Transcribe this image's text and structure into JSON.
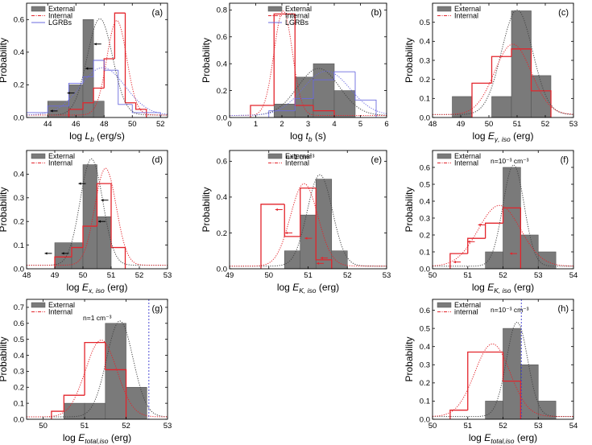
{
  "chart_data": [
    {
      "panel": "(a)",
      "type": "bar",
      "xlabel_main": "log ",
      "xlabel_var": "L",
      "xlabel_sub": "b",
      "xlabel_units": " (erg/s)",
      "ylabel": "Probability",
      "xlim": [
        42.5,
        52.5
      ],
      "ylim": [
        0,
        0.7
      ],
      "xticks": [
        44,
        46,
        48,
        50,
        52
      ],
      "yticks": [
        0.0,
        0.2,
        0.4,
        0.6
      ],
      "legend": [
        "External",
        "Internal",
        "LGRBs"
      ],
      "annotation": "",
      "series": [
        {
          "name": "External",
          "style": "bar",
          "edges": [
            44,
            45.5,
            46.5,
            47.25,
            48,
            48.75
          ],
          "values": [
            0.1,
            0.2,
            0.6,
            0.1,
            0.0
          ]
        },
        {
          "name": "Internal",
          "style": "step",
          "edges": [
            45.5,
            46.5,
            47.25,
            48,
            48.75,
            49.5,
            50.25,
            51
          ],
          "values": [
            0.05,
            0.09,
            0.18,
            0.36,
            0.64,
            0.09,
            0.05
          ]
        },
        {
          "name": "LGRBs",
          "style": "step",
          "edges": [
            42.5,
            44,
            45.5,
            46.5,
            47.25,
            48,
            49,
            50,
            52
          ],
          "values": [
            0.03,
            0.07,
            0.21,
            0.25,
            0.35,
            0.29,
            0.08,
            0.03
          ]
        }
      ],
      "fits": [
        {
          "name": "External",
          "mu": 47.7,
          "sigma": 0.9,
          "amp": 0.59
        },
        {
          "name": "Internal",
          "mu": 48.9,
          "sigma": 0.7,
          "amp": 0.58
        },
        {
          "name": "LGRBs",
          "mu": 47.9,
          "sigma": 1.6,
          "amp": 0.29
        }
      ],
      "arrows": [
        [
          47.8,
          0.45
        ],
        [
          47.2,
          0.3
        ],
        [
          45.9,
          0.15
        ],
        [
          44.7,
          0.04
        ]
      ],
      "vlines": []
    },
    {
      "panel": "(b)",
      "type": "bar",
      "xlabel_main": "log ",
      "xlabel_var": "t",
      "xlabel_sub": "b",
      "xlabel_units": " (s)",
      "ylabel": "Probability",
      "xlim": [
        0,
        6
      ],
      "ylim": [
        0,
        0.85
      ],
      "xticks": [
        0,
        1,
        2,
        3,
        4,
        5,
        6
      ],
      "yticks": [
        0.0,
        0.2,
        0.4,
        0.6,
        0.8
      ],
      "legend": [
        "External",
        "Internal",
        "LGRBs"
      ],
      "annotation": "",
      "series": [
        {
          "name": "External",
          "style": "bar",
          "edges": [
            1.7,
            2.5,
            3.2,
            4.0,
            4.8
          ],
          "values": [
            0.1,
            0.3,
            0.4,
            0.2
          ]
        },
        {
          "name": "Internal",
          "style": "step",
          "edges": [
            0.8,
            1.7,
            2.5,
            3.2,
            4.0
          ],
          "values": [
            0.09,
            0.77,
            0.09,
            0.05
          ]
        },
        {
          "name": "LGRBs",
          "style": "step",
          "edges": [
            1.5,
            2.5,
            3.2,
            4.0,
            4.8,
            5.6
          ],
          "values": [
            0.05,
            0.14,
            0.28,
            0.34,
            0.13
          ]
        }
      ],
      "fits": [
        {
          "name": "External",
          "mu": 3.4,
          "sigma": 0.8,
          "amp": 0.35
        },
        {
          "name": "Internal",
          "mu": 2.05,
          "sigma": 0.35,
          "amp": 0.78
        },
        {
          "name": "LGRBs",
          "mu": 3.7,
          "sigma": 0.9,
          "amp": 0.33
        }
      ],
      "arrows": [],
      "vlines": []
    },
    {
      "panel": "(c)",
      "type": "bar",
      "xlabel_main": "log ",
      "xlabel_var": "E",
      "xlabel_sub": "γ, iso",
      "xlabel_units": " (erg)",
      "ylabel": "Probability",
      "xlim": [
        48,
        53
      ],
      "ylim": [
        0,
        0.6
      ],
      "xticks": [
        48,
        49,
        50,
        51,
        52,
        53
      ],
      "yticks": [
        0.0,
        0.1,
        0.2,
        0.3,
        0.4,
        0.5
      ],
      "legend": [
        "External",
        "Internal"
      ],
      "annotation": "",
      "series": [
        {
          "name": "External",
          "style": "bar",
          "edges": [
            48.7,
            49.4,
            50.1,
            50.8,
            51.5,
            52.2
          ],
          "values": [
            0.11,
            0.0,
            0.11,
            0.56,
            0.22
          ]
        },
        {
          "name": "Internal",
          "style": "step",
          "edges": [
            49.4,
            50.1,
            50.8,
            51.5,
            52.2
          ],
          "values": [
            0.18,
            0.32,
            0.36,
            0.14
          ]
        }
      ],
      "fits": [
        {
          "name": "External",
          "mu": 51.0,
          "sigma": 0.55,
          "amp": 0.55
        },
        {
          "name": "Internal",
          "mu": 50.85,
          "sigma": 0.65,
          "amp": 0.37
        }
      ],
      "arrows": [],
      "vlines": []
    },
    {
      "panel": "(d)",
      "type": "bar",
      "xlabel_main": "log ",
      "xlabel_var": "E",
      "xlabel_sub": "x, iso",
      "xlabel_units": " (erg)",
      "ylabel": "Probability",
      "xlim": [
        48,
        53
      ],
      "ylim": [
        0,
        0.5
      ],
      "xticks": [
        48,
        49,
        50,
        51,
        52,
        53
      ],
      "yticks": [
        0.0,
        0.1,
        0.2,
        0.3,
        0.4
      ],
      "legend": [
        "External",
        "Internal"
      ],
      "annotation": "",
      "series": [
        {
          "name": "External",
          "style": "bar",
          "edges": [
            49.0,
            49.6,
            50.0,
            50.5,
            51.0
          ],
          "values": [
            0.11,
            0.11,
            0.44,
            0.22
          ]
        },
        {
          "name": "Internal",
          "style": "step",
          "edges": [
            49.0,
            49.6,
            50.0,
            50.5,
            51.0,
            51.5
          ],
          "values": [
            0.05,
            0.09,
            0.18,
            0.36,
            0.09
          ]
        }
      ],
      "fits": [
        {
          "name": "External",
          "mu": 50.3,
          "sigma": 0.4,
          "amp": 0.45
        },
        {
          "name": "Internal",
          "mu": 50.8,
          "sigma": 0.38,
          "amp": 0.41
        }
      ],
      "arrows": [
        [
          50.1,
          0.36
        ],
        [
          50.9,
          0.29
        ],
        [
          50.8,
          0.2
        ],
        [
          49.5,
          0.065
        ],
        [
          48.9,
          0.065
        ]
      ],
      "vlines": []
    },
    {
      "panel": "(e)",
      "type": "bar",
      "xlabel_main": "log ",
      "xlabel_var": "E",
      "xlabel_sub": "K, iso",
      "xlabel_units": " (erg)",
      "ylabel": "Probability",
      "xlim": [
        49,
        53
      ],
      "ylim": [
        0,
        0.66
      ],
      "xticks": [
        49,
        50,
        51,
        52,
        53
      ],
      "yticks": [
        0.0,
        0.2,
        0.4,
        0.6
      ],
      "legend": [
        "External",
        "Internal"
      ],
      "annotation": "n=1 cm⁻³",
      "series": [
        {
          "name": "External",
          "style": "bar",
          "edges": [
            50.4,
            50.8,
            51.2,
            51.6,
            52.0
          ],
          "values": [
            0.1,
            0.3,
            0.5,
            0.1
          ]
        },
        {
          "name": "Internal",
          "style": "step",
          "edges": [
            49.8,
            50.4,
            50.8,
            51.2,
            51.6
          ],
          "values": [
            0.36,
            0.18,
            0.45,
            0.05
          ]
        }
      ],
      "fits": [
        {
          "name": "External",
          "mu": 51.3,
          "sigma": 0.32,
          "amp": 0.51
        },
        {
          "name": "Internal",
          "mu": 50.9,
          "sigma": 0.35,
          "amp": 0.46
        }
      ],
      "arrows": [
        [
          50.35,
          0.33
        ],
        [
          50.6,
          0.2
        ],
        [
          51.1,
          0.17
        ],
        [
          51.5,
          0.06
        ],
        [
          51.4,
          0.03
        ]
      ],
      "vlines": []
    },
    {
      "panel": "(f)",
      "type": "bar",
      "xlabel_main": "log ",
      "xlabel_var": "E",
      "xlabel_sub": "K, iso",
      "xlabel_units": " (erg)",
      "ylabel": "Probability",
      "xlim": [
        50,
        54
      ],
      "ylim": [
        0,
        0.7
      ],
      "xticks": [
        50,
        51,
        52,
        53,
        54
      ],
      "yticks": [
        0.0,
        0.1,
        0.2,
        0.3,
        0.4,
        0.5,
        0.6
      ],
      "legend": [
        "External",
        "Internal"
      ],
      "annotation": "n=10⁻³ cm⁻³",
      "series": [
        {
          "name": "External",
          "style": "bar",
          "edges": [
            51.5,
            52.0,
            52.5,
            53.0,
            53.5
          ],
          "values": [
            0.1,
            0.6,
            0.2,
            0.1
          ]
        },
        {
          "name": "Internal",
          "style": "step",
          "edges": [
            50.5,
            51.0,
            51.5,
            52.0,
            52.5
          ],
          "values": [
            0.09,
            0.18,
            0.27,
            0.36
          ]
        }
      ],
      "fits": [
        {
          "name": "External",
          "mu": 52.3,
          "sigma": 0.3,
          "amp": 0.6
        },
        {
          "name": "Internal",
          "mu": 51.9,
          "sigma": 0.6,
          "amp": 0.36
        }
      ],
      "arrows": [
        [
          51.5,
          0.26
        ],
        [
          51.2,
          0.16
        ],
        [
          50.8,
          0.04
        ],
        [
          52.4,
          0.09
        ]
      ],
      "vlines": []
    },
    {
      "panel": "(g)",
      "type": "bar",
      "xlabel_main": "log ",
      "xlabel_var": "E",
      "xlabel_sub": "total,iso",
      "xlabel_units": " (erg)",
      "ylabel": "Probability",
      "xlim": [
        49.6,
        53
      ],
      "ylim": [
        0,
        0.75
      ],
      "xticks": [
        50,
        51,
        52,
        53
      ],
      "yticks": [
        0.0,
        0.1,
        0.2,
        0.3,
        0.4,
        0.5,
        0.6,
        0.7
      ],
      "legend": [
        "External",
        "Internal"
      ],
      "annotation": "n=1 cm⁻³",
      "series": [
        {
          "name": "External",
          "style": "bar",
          "edges": [
            50.5,
            51.0,
            51.5,
            52.0,
            52.5
          ],
          "values": [
            0.1,
            0.1,
            0.6,
            0.2
          ]
        },
        {
          "name": "Internal",
          "style": "step",
          "edges": [
            50.2,
            50.5,
            51.0,
            51.5,
            52.0
          ],
          "values": [
            0.05,
            0.15,
            0.48,
            0.31
          ]
        }
      ],
      "fits": [
        {
          "name": "External",
          "mu": 51.85,
          "sigma": 0.32,
          "amp": 0.6
        },
        {
          "name": "Internal",
          "mu": 51.4,
          "sigma": 0.38,
          "amp": 0.48
        }
      ],
      "arrows": [],
      "vlines": [
        52.55
      ]
    },
    {
      "panel": "(h)",
      "type": "bar",
      "xlabel_main": "log ",
      "xlabel_var": "E",
      "xlabel_sub": "total,iso",
      "xlabel_units": " (erg)",
      "ylabel": "Probability",
      "xlim": [
        50,
        54
      ],
      "ylim": [
        0,
        0.66
      ],
      "xticks": [
        50,
        51,
        52,
        53,
        54
      ],
      "yticks": [
        0.0,
        0.1,
        0.2,
        0.3,
        0.4,
        0.5,
        0.6
      ],
      "legend": [
        "External",
        "internal"
      ],
      "annotation": "n=10⁻³ cm⁻³",
      "series": [
        {
          "name": "External",
          "style": "bar",
          "edges": [
            51.5,
            52.0,
            52.5,
            53.0,
            53.5
          ],
          "values": [
            0.1,
            0.5,
            0.3,
            0.1
          ]
        },
        {
          "name": "Internal",
          "style": "step",
          "edges": [
            50.5,
            51.0,
            51.5,
            52.0,
            52.5
          ],
          "values": [
            0.05,
            0.37,
            0.37,
            0.21
          ]
        }
      ],
      "fits": [
        {
          "name": "External",
          "mu": 52.4,
          "sigma": 0.3,
          "amp": 0.52
        },
        {
          "name": "Internal",
          "mu": 51.7,
          "sigma": 0.5,
          "amp": 0.4
        }
      ],
      "arrows": [],
      "vlines": [
        52.52
      ]
    }
  ],
  "colors": {
    "external_bar": "#7a7a7a",
    "internal": "#e3242b",
    "lgrbs": "#6b6bdf",
    "vline": "#3a3ad0"
  }
}
